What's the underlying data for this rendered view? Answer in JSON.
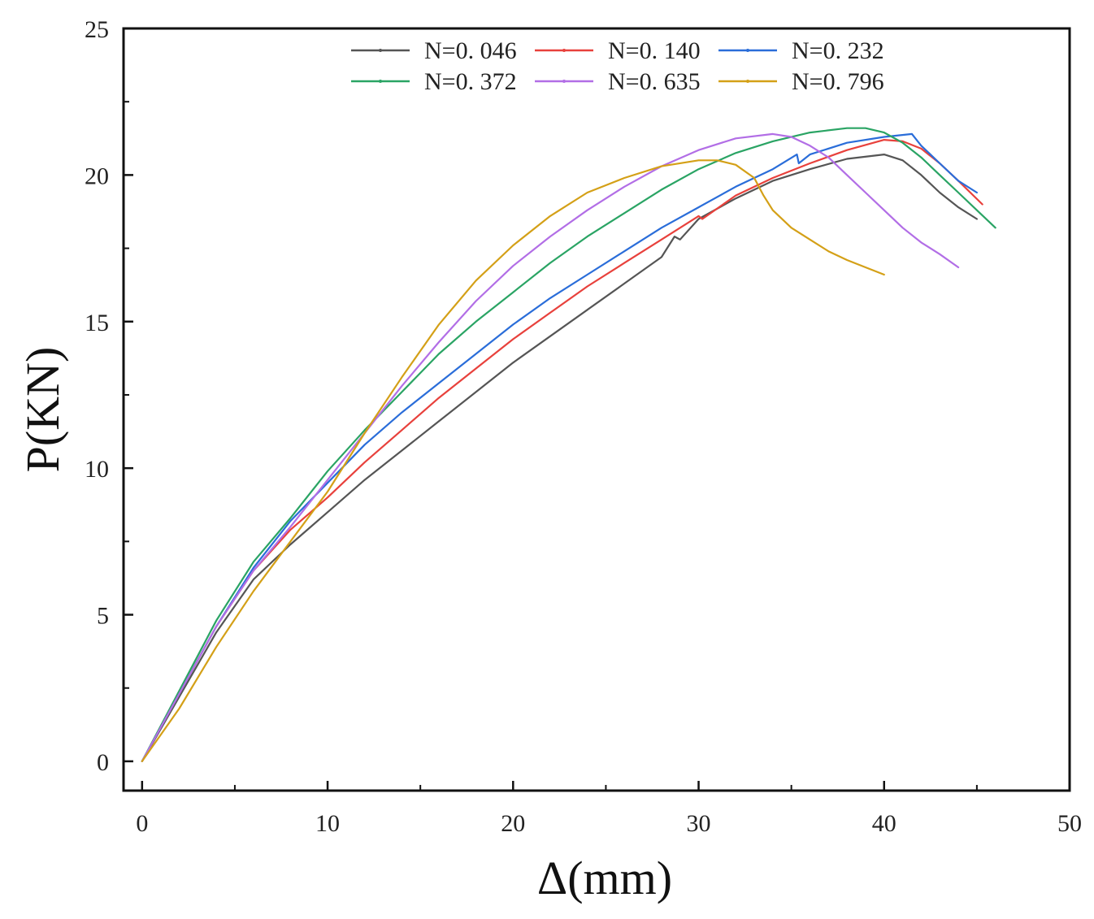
{
  "chart_data": {
    "type": "line",
    "title": "",
    "xlabel": "Δ(mm)",
    "ylabel": "P(KN)",
    "xlim": [
      -1,
      50
    ],
    "ylim": [
      -1,
      25
    ],
    "xticks": [
      0,
      10,
      20,
      30,
      40,
      50
    ],
    "xtick_labels": [
      "0",
      "10",
      "20",
      "30",
      "40",
      "50"
    ],
    "yticks": [
      0,
      5,
      10,
      15,
      20,
      25
    ],
    "ytick_labels": [
      "0",
      "5",
      "10",
      "15",
      "20",
      "25"
    ],
    "x_minor_step": 5,
    "y_minor_step": 2.5,
    "grid": false,
    "legend_position": "top-center",
    "series": [
      {
        "name": "N=0. 046",
        "color": "#555555",
        "x": [
          0,
          2,
          4,
          6,
          8,
          10,
          12,
          14,
          16,
          18,
          20,
          22,
          24,
          26,
          28,
          28.7,
          29,
          30,
          32,
          34,
          36,
          38,
          40,
          41,
          42,
          43,
          44,
          45
        ],
        "y": [
          0,
          2.2,
          4.4,
          6.2,
          7.4,
          8.5,
          9.6,
          10.6,
          11.6,
          12.6,
          13.6,
          14.5,
          15.4,
          16.3,
          17.2,
          17.9,
          17.8,
          18.5,
          19.2,
          19.8,
          20.2,
          20.55,
          20.7,
          20.5,
          20,
          19.4,
          18.9,
          18.5
        ]
      },
      {
        "name": "N=0. 140",
        "color": "#e8413c",
        "x": [
          0,
          2,
          4,
          6,
          8,
          10,
          12,
          14,
          16,
          18,
          20,
          22,
          24,
          26,
          28,
          30,
          30.2,
          32,
          34,
          36,
          38,
          40,
          41,
          42,
          43,
          44,
          45.3
        ],
        "y": [
          0,
          2.3,
          4.6,
          6.5,
          7.9,
          9.0,
          10.2,
          11.3,
          12.4,
          13.4,
          14.4,
          15.3,
          16.2,
          17.0,
          17.8,
          18.6,
          18.5,
          19.3,
          19.9,
          20.4,
          20.85,
          21.2,
          21.15,
          20.9,
          20.4,
          19.8,
          19.0
        ]
      },
      {
        "name": "N=0. 232",
        "color": "#2a6dd9",
        "x": [
          0,
          2,
          4,
          6,
          8,
          10,
          12,
          14,
          16,
          18,
          20,
          22,
          24,
          26,
          28,
          30,
          32,
          34,
          35.3,
          35.4,
          36,
          38,
          40,
          41.5,
          42,
          43,
          44,
          45
        ],
        "y": [
          0,
          2.3,
          4.6,
          6.6,
          8.2,
          9.5,
          10.8,
          11.9,
          12.9,
          13.9,
          14.9,
          15.8,
          16.6,
          17.4,
          18.2,
          18.9,
          19.6,
          20.2,
          20.7,
          20.4,
          20.7,
          21.1,
          21.3,
          21.4,
          21.0,
          20.4,
          19.8,
          19.4
        ]
      },
      {
        "name": "N=0. 372",
        "color": "#2aa464",
        "x": [
          0,
          2,
          4,
          6,
          8,
          10,
          12,
          14,
          16,
          18,
          20,
          22,
          24,
          26,
          28,
          30,
          32,
          34,
          36,
          38,
          39,
          40,
          41,
          42,
          43,
          44,
          45,
          46
        ],
        "y": [
          0,
          2.4,
          4.8,
          6.8,
          8.3,
          9.9,
          11.3,
          12.6,
          13.9,
          15.0,
          16.0,
          17.0,
          17.9,
          18.7,
          19.5,
          20.2,
          20.75,
          21.15,
          21.45,
          21.6,
          21.6,
          21.45,
          21.1,
          20.6,
          20.0,
          19.4,
          18.8,
          18.2
        ]
      },
      {
        "name": "N=0. 635",
        "color": "#b26ee6",
        "x": [
          0,
          2,
          4,
          6,
          8,
          10,
          12,
          14,
          16,
          18,
          20,
          22,
          24,
          26,
          28,
          30,
          32,
          34,
          35,
          36,
          37,
          38,
          39,
          40,
          41,
          42,
          43,
          44
        ],
        "y": [
          0,
          2.3,
          4.6,
          6.5,
          8.0,
          9.6,
          11.2,
          12.8,
          14.3,
          15.7,
          16.9,
          17.9,
          18.8,
          19.6,
          20.3,
          20.85,
          21.25,
          21.4,
          21.3,
          21.0,
          20.6,
          20.0,
          19.4,
          18.8,
          18.2,
          17.7,
          17.3,
          16.85
        ]
      },
      {
        "name": "N=0. 796",
        "color": "#d4a017",
        "x": [
          0,
          2,
          4,
          6,
          8,
          10,
          12,
          14,
          16,
          18,
          20,
          22,
          24,
          26,
          28,
          30,
          31,
          32,
          33,
          33.5,
          34,
          35,
          36,
          37,
          38,
          39,
          40
        ],
        "y": [
          0,
          1.8,
          3.9,
          5.8,
          7.5,
          9.2,
          11.2,
          13.1,
          14.9,
          16.4,
          17.6,
          18.6,
          19.4,
          19.9,
          20.3,
          20.5,
          20.5,
          20.35,
          19.9,
          19.3,
          18.8,
          18.2,
          17.8,
          17.4,
          17.1,
          16.85,
          16.6
        ]
      }
    ]
  }
}
